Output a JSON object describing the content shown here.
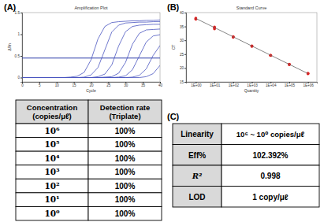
{
  "panels": [
    "(A)",
    "(B)",
    "(C)"
  ],
  "chart_data": [
    {
      "type": "line",
      "title": "Amplification Plot",
      "x_label": "Cycle",
      "y_label": "ΔRn",
      "x": [
        0,
        2,
        4,
        6,
        8,
        10,
        12,
        14,
        16,
        18,
        20,
        22,
        24,
        26,
        28,
        30,
        32,
        34,
        36,
        38,
        40
      ],
      "series": [
        {
          "values": [
            0,
            0,
            0,
            0,
            0,
            0,
            0,
            0.01,
            0.03,
            0.12,
            0.41,
            0.89,
            1.18,
            1.27,
            1.29,
            1.3,
            1.31,
            1.31,
            1.32,
            1.32,
            1.33
          ]
        },
        {
          "values": [
            0,
            0,
            0,
            0,
            0,
            0,
            0,
            0,
            0,
            0.01,
            0.06,
            0.23,
            0.64,
            1.05,
            1.21,
            1.26,
            1.27,
            1.28,
            1.28,
            1.29,
            1.29
          ]
        },
        {
          "values": [
            0,
            0,
            0,
            0,
            0,
            0,
            0,
            0,
            0,
            0,
            0,
            0.02,
            0.08,
            0.29,
            0.73,
            1.06,
            1.18,
            1.21,
            1.22,
            1.23,
            1.23
          ]
        },
        {
          "values": [
            0,
            0,
            0,
            0,
            0,
            0,
            0,
            0,
            0,
            0,
            0,
            0,
            0.01,
            0.02,
            0.1,
            0.35,
            0.77,
            1.02,
            1.1,
            1.11,
            1.12
          ]
        },
        {
          "values": [
            0,
            0,
            0,
            0,
            0,
            0,
            0,
            0,
            0,
            0,
            0,
            0,
            0,
            0,
            0.01,
            0.04,
            0.18,
            0.5,
            0.82,
            0.96,
            0.99
          ]
        },
        {
          "values": [
            0,
            0,
            0,
            0,
            0,
            0,
            0,
            0,
            0,
            0,
            0,
            0,
            0,
            0,
            0,
            0,
            0.01,
            0.05,
            0.2,
            0.51,
            0.74
          ]
        },
        {
          "values": [
            0,
            0,
            0,
            0,
            0,
            0,
            0,
            0,
            0,
            0,
            0,
            0,
            0,
            0,
            0,
            0,
            0,
            0,
            0.02,
            0.09,
            0.28
          ]
        }
      ],
      "color": "#4a55c0",
      "threshold": 0.45,
      "xlim": [
        0,
        40
      ],
      "xticks": [
        0,
        5,
        10,
        15,
        20,
        25,
        30,
        35,
        40
      ],
      "ylim": [
        -0.1,
        1.5
      ],
      "yticks": [
        0,
        0.5,
        1,
        1.5
      ],
      "grid": false
    },
    {
      "type": "scatter",
      "title": "Standard Curve",
      "x_label": "Quantity",
      "y_label": "CT",
      "log": "x",
      "series": [
        {
          "type": "scatter",
          "color": "#e02020",
          "marker": "circle",
          "x": [
            1,
            1,
            1,
            10,
            10,
            10,
            100,
            100,
            100,
            1000,
            1000,
            1000,
            10000,
            10000,
            10000,
            100000,
            100000,
            100000,
            1000000,
            1000000,
            1000000
          ],
          "values": [
            37.6,
            37.8,
            38.0,
            34.1,
            34.5,
            34.8,
            31.1,
            31.2,
            31.3,
            27.8,
            27.9,
            28.0,
            24.5,
            24.6,
            24.6,
            21.2,
            21.3,
            21.4,
            17.9,
            18.0,
            18.1
          ]
        },
        {
          "type": "line",
          "color": "#666666",
          "line_style": "solid",
          "x": [
            1,
            1000000
          ],
          "values": [
            37.9,
            18.0
          ]
        }
      ],
      "xlim": [
        0.3,
        3000000
      ],
      "xticks": [
        {
          "value": 1,
          "label": "1E+00"
        },
        {
          "value": 10,
          "label": "1E+01"
        },
        {
          "value": 100,
          "label": "1E+02"
        },
        {
          "value": 1000,
          "label": "1E+03"
        },
        {
          "value": 10000,
          "label": "1E+04"
        },
        {
          "value": 100000,
          "label": "1E+05"
        },
        {
          "value": 1000000,
          "label": "1E+06"
        }
      ],
      "ylim": [
        15,
        40
      ],
      "yticks": [
        15,
        20,
        25,
        30,
        35,
        40
      ],
      "grid": false
    }
  ],
  "tables": [
    {
      "columns": [
        [
          "Concentration",
          "(copies/μℓ)"
        ],
        [
          "Detection rate",
          "(Triplate)"
        ]
      ],
      "rows": [
        [
          "10⁶",
          "100%"
        ],
        [
          "10⁵",
          "100%"
        ],
        [
          "10⁴",
          "100%"
        ],
        [
          "10³",
          "100%"
        ],
        [
          "10²",
          "100%"
        ],
        [
          "10¹",
          "100%"
        ],
        [
          "10⁰",
          "100%"
        ]
      ]
    },
    {
      "rows": [
        [
          "Linearity",
          "10⁶ ~ 10⁰ copies/μℓ"
        ],
        [
          "Eff%",
          "102.392%"
        ],
        [
          "R²",
          "0.998"
        ],
        [
          "LOD",
          "1 copy/μℓ"
        ]
      ]
    }
  ]
}
